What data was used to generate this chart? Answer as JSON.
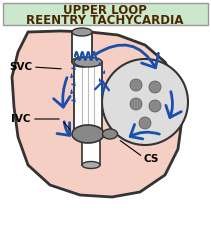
{
  "title_line1": "UPPER LOOP",
  "title_line2": "REENTRY TACHYCARDIA",
  "title_bg": "#cce8cc",
  "title_border": "#999999",
  "title_text_color": "#4a2800",
  "bg_color": "#ffffff",
  "heart_fill": "#f5cfc4",
  "heart_outline": "#333333",
  "tube_fill": "#ffffff",
  "tube_outline": "#333333",
  "svc_gray": "#999999",
  "ivc_gray": "#888888",
  "cs_gray": "#888888",
  "pv_circle_fill": "#dddddd",
  "pv_dot_fill": "#888888",
  "arrow_color": "#1a4faa",
  "svc_label": "SVC",
  "ivc_label": "IVC",
  "cs_label": "CS",
  "label_color": "#000000",
  "label_fontsize": 7.5
}
